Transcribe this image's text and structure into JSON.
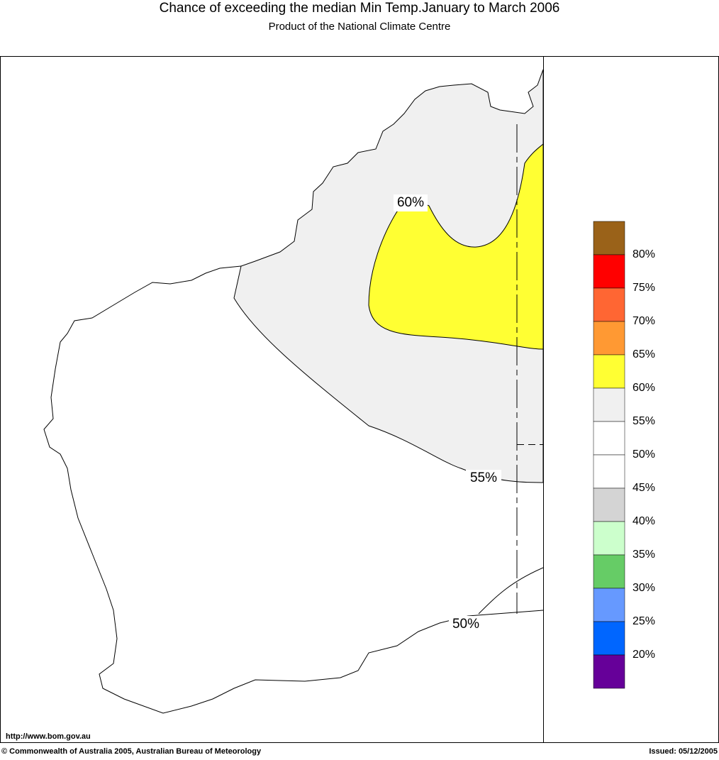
{
  "header": {
    "title": "Chance of exceeding the median Min Temp.January to March 2006",
    "subtitle": "Product of the National Climate Centre"
  },
  "contour_labels": [
    "60%",
    "55%",
    "50%"
  ],
  "legend": {
    "colors": [
      "#9a6219",
      "#ff0000",
      "#ff6633",
      "#ff9933",
      "#ffff33",
      "#f0f0f0",
      "#ffffff",
      "#ffffff",
      "#d4d4d4",
      "#ccffcc",
      "#66cc66",
      "#6699ff",
      "#0066ff",
      "#660099"
    ],
    "labels": [
      "80%",
      "75%",
      "70%",
      "65%",
      "60%",
      "55%",
      "50%",
      "45%",
      "40%",
      "35%",
      "30%",
      "25%",
      "20%"
    ]
  },
  "footer": {
    "url": "http://www.bom.gov.au",
    "copyright": "© Commonwealth of Australia 2005, Australian Bureau of Meteorology",
    "issued": "Issued: 05/12/2005"
  }
}
